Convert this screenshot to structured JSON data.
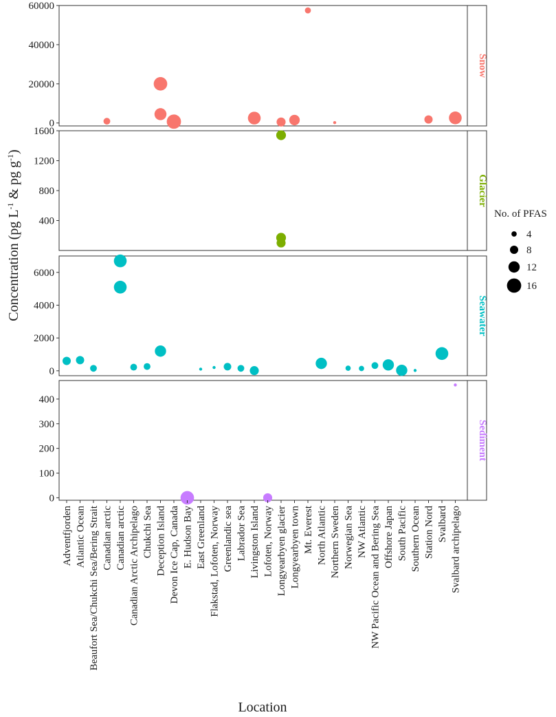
{
  "chart_data": {
    "type": "scatter",
    "xlabel": "Location",
    "ylabel": "Concentration (pg L",
    "ylabel_sup1": "-1",
    "ylabel_mid": " & pg g",
    "ylabel_sup2": "-1",
    "ylabel_end": ")",
    "size_legend": {
      "title": "No. of PFAS",
      "items": [
        {
          "label": "4",
          "value": 4
        },
        {
          "label": "8",
          "value": 8
        },
        {
          "label": "12",
          "value": 12
        },
        {
          "label": "16",
          "value": 16
        }
      ]
    },
    "categories": [
      "Adventfjorden",
      "Atlantic Ocean",
      "Beaufort Sea/Chukchi Sea/Bering Strait",
      "Canadian arctic",
      "Canadian arctic",
      "Canadian Arctic Archipelago",
      "Chukchi Sea",
      "Deception Island",
      "Devon Ice Cap, Canada",
      "E. Hudson Bay",
      "East Greenland",
      "Flakstad, Lofoten, Norway",
      "Greenlandic sea",
      "Labrador Sea",
      "Livingston Island",
      "Lofoten, Norway",
      "Longyearbyen glacier",
      "Longyearbyen town",
      "Mt. Everest",
      "North Atlantic",
      "Northern Sweden",
      "Norwegian Sea",
      "NW Atlantic",
      "NW Pacific Ocean and Bering Sea",
      "Offshore Japan",
      "South Pacific",
      "Southern Ocean",
      "Station Nord",
      "Svalbard",
      "Svalbard archipelago"
    ],
    "panels": [
      {
        "name": "Snow",
        "color": "#F8766D",
        "ylim": [
          -1500,
          60000
        ],
        "ticks": [
          0,
          20000,
          40000,
          60000
        ],
        "tick_labels": [
          "0",
          "20000",
          "40000",
          "60000"
        ],
        "points": [
          {
            "x": 4,
            "y": 900,
            "n": 6
          },
          {
            "x": 8,
            "y": 20000,
            "n": 15
          },
          {
            "x": 8,
            "y": 4500,
            "n": 13
          },
          {
            "x": 9,
            "y": 700,
            "n": 16
          },
          {
            "x": 15,
            "y": 2500,
            "n": 14
          },
          {
            "x": 17,
            "y": 500,
            "n": 9
          },
          {
            "x": 18,
            "y": 1500,
            "n": 11
          },
          {
            "x": 19,
            "y": 57500,
            "n": 5
          },
          {
            "x": 21,
            "y": 200,
            "n": 1
          },
          {
            "x": 28,
            "y": 1800,
            "n": 8
          },
          {
            "x": 30,
            "y": 2600,
            "n": 14
          }
        ]
      },
      {
        "name": "Glacier",
        "color": "#7CAE00",
        "ylim": [
          0,
          1600
        ],
        "ticks": [
          400,
          800,
          1200,
          1600
        ],
        "tick_labels": [
          "400",
          "800",
          "1200",
          "1600"
        ],
        "points": [
          {
            "x": 17,
            "y": 1540,
            "n": 10
          },
          {
            "x": 17,
            "y": 170,
            "n": 10
          },
          {
            "x": 17,
            "y": 100,
            "n": 9
          }
        ]
      },
      {
        "name": "Seawater",
        "color": "#00BFC4",
        "ylim": [
          -300,
          7000
        ],
        "ticks": [
          0,
          2000,
          4000,
          6000
        ],
        "tick_labels": [
          "0",
          "2000",
          "4000",
          "6000"
        ],
        "points": [
          {
            "x": 1,
            "y": 600,
            "n": 8
          },
          {
            "x": 2,
            "y": 650,
            "n": 8
          },
          {
            "x": 3,
            "y": 150,
            "n": 6
          },
          {
            "x": 5,
            "y": 6700,
            "n": 14
          },
          {
            "x": 5,
            "y": 5100,
            "n": 14
          },
          {
            "x": 6,
            "y": 220,
            "n": 6
          },
          {
            "x": 7,
            "y": 260,
            "n": 6
          },
          {
            "x": 8,
            "y": 1200,
            "n": 12
          },
          {
            "x": 11,
            "y": 100,
            "n": 1
          },
          {
            "x": 12,
            "y": 200,
            "n": 1
          },
          {
            "x": 13,
            "y": 250,
            "n": 7
          },
          {
            "x": 14,
            "y": 150,
            "n": 6
          },
          {
            "x": 15,
            "y": 10,
            "n": 9
          },
          {
            "x": 20,
            "y": 450,
            "n": 12
          },
          {
            "x": 22,
            "y": 160,
            "n": 4
          },
          {
            "x": 23,
            "y": 140,
            "n": 4
          },
          {
            "x": 24,
            "y": 320,
            "n": 6
          },
          {
            "x": 25,
            "y": 360,
            "n": 12
          },
          {
            "x": 26,
            "y": 30,
            "n": 12
          },
          {
            "x": 27,
            "y": 20,
            "n": 1
          },
          {
            "x": 29,
            "y": 1050,
            "n": 14
          }
        ]
      },
      {
        "name": "Sediment",
        "color": "#C77CFF",
        "ylim": [
          -10,
          475
        ],
        "ticks": [
          0,
          100,
          200,
          300,
          400
        ],
        "tick_labels": [
          "0",
          "100",
          "200",
          "300",
          "400"
        ],
        "points": [
          {
            "x": 10,
            "y": 0,
            "n": 15
          },
          {
            "x": 16,
            "y": 0,
            "n": 9
          },
          {
            "x": 30,
            "y": 457,
            "n": 1
          }
        ]
      }
    ]
  }
}
